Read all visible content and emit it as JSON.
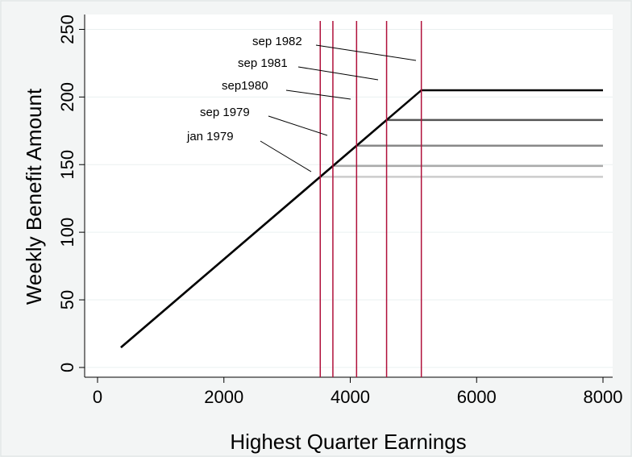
{
  "chart_data": {
    "type": "line",
    "xlabel": "Highest Quarter Earnings",
    "ylabel": "Weekly Benefit Amount",
    "xlim": [
      -204,
      8153
    ],
    "ylim": [
      -7.2,
      261
    ],
    "xticks": [
      0,
      2000,
      4000,
      6000,
      8000
    ],
    "yticks": [
      0,
      50,
      100,
      150,
      200,
      250
    ],
    "grid": true,
    "series": [
      {
        "name": "jan 1979",
        "color": "#cccccc",
        "x": [
          370,
          3525,
          8000
        ],
        "values": [
          14.8,
          141,
          141
        ]
      },
      {
        "name": "sep 1979",
        "color": "#aaaaaa",
        "x": [
          370,
          3725,
          8000
        ],
        "values": [
          14.8,
          149,
          149
        ]
      },
      {
        "name": "sep1980",
        "color": "#888888",
        "x": [
          370,
          4100,
          8000
        ],
        "values": [
          14.8,
          164,
          164
        ]
      },
      {
        "name": "sep 1981",
        "color": "#555555",
        "x": [
          370,
          4575,
          8000
        ],
        "values": [
          14.8,
          183,
          183
        ]
      },
      {
        "name": "sep 1982",
        "color": "#000000",
        "x": [
          370,
          5125,
          8000
        ],
        "values": [
          14.8,
          205,
          205
        ]
      }
    ],
    "vlines": [
      3525,
      3725,
      4100,
      4575,
      5125
    ],
    "vline_color": "#b0103a"
  }
}
